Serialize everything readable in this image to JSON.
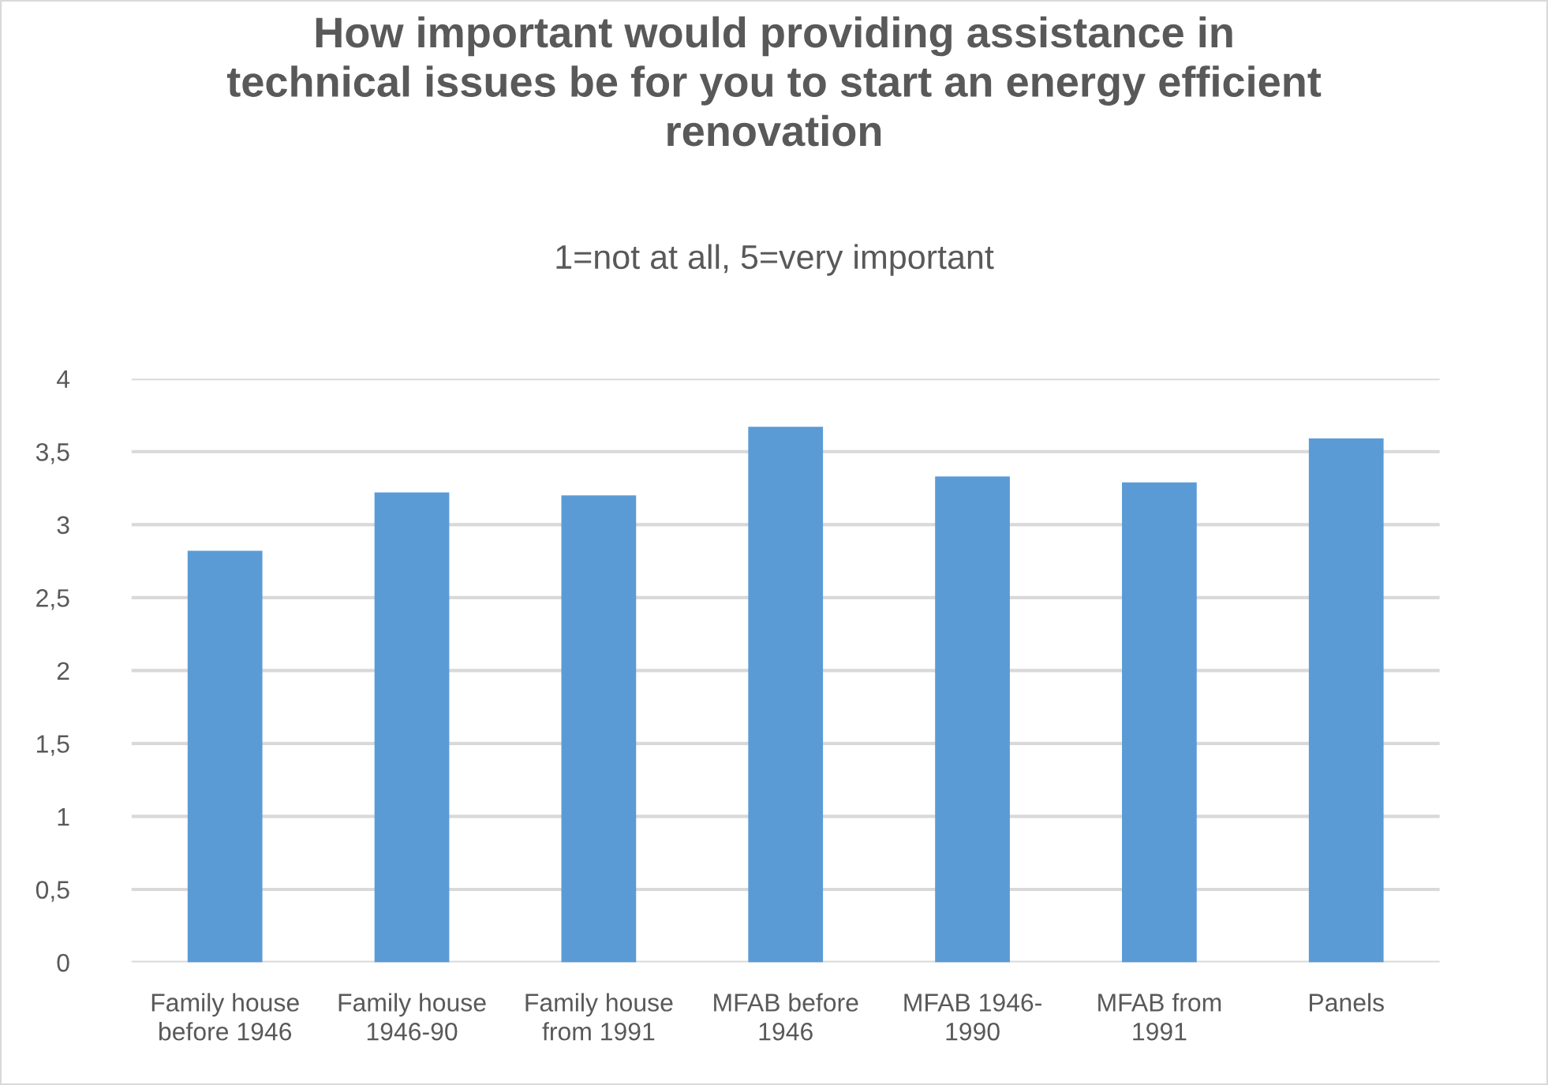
{
  "chart_data": {
    "type": "bar",
    "title": "How important would providing assistance in\ntechnical issues be for you to start an energy efficient\nrenovation",
    "subtitle": "1=not at all, 5=very important",
    "categories": [
      "Family house\nbefore 1946",
      "Family house\n1946-90",
      "Family house\nfrom 1991",
      "MFAB before\n1946",
      "MFAB 1946-\n1990",
      "MFAB from\n1991",
      "Panels"
    ],
    "values": [
      2.82,
      3.22,
      3.2,
      3.67,
      3.33,
      3.29,
      3.59
    ],
    "color": "#5b9bd5",
    "ylim": [
      0,
      4
    ],
    "yticks": [
      0,
      {
        "value": 0.5,
        "label": "0,5"
      },
      1,
      {
        "value": 1.5,
        "label": "1,5"
      },
      2,
      {
        "value": 2.5,
        "label": "2,5"
      },
      3,
      {
        "value": 3.5,
        "label": "3,5"
      },
      4
    ],
    "grid": "y",
    "legend": false
  }
}
